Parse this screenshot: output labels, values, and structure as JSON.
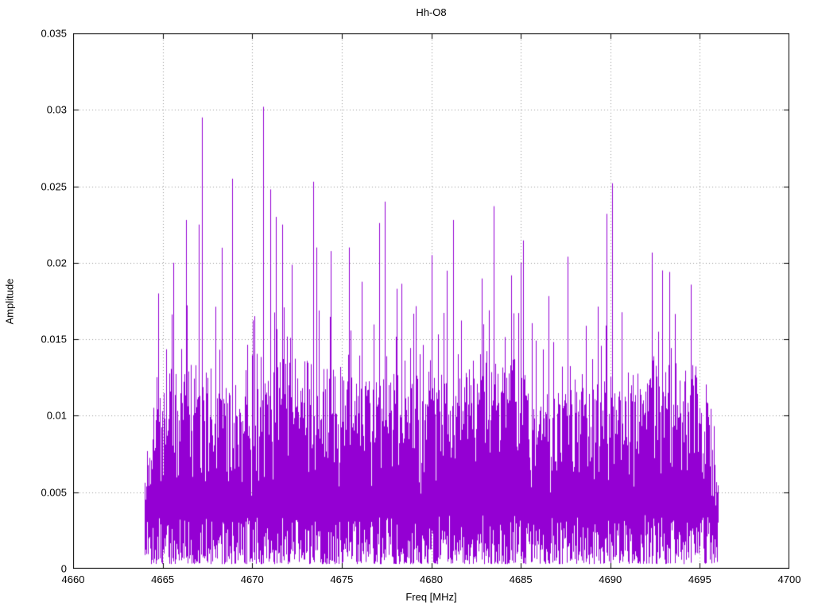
{
  "chart_data": {
    "type": "line",
    "title": "Hh-O8",
    "xlabel": "Freq [MHz]",
    "ylabel": "Amplitude",
    "xlim": [
      4660,
      4700
    ],
    "ylim": [
      0,
      0.035
    ],
    "x_tick_labels": [
      "4660",
      "4665",
      "4670",
      "4675",
      "4680",
      "4685",
      "4690",
      "4695",
      "4700"
    ],
    "x_tick_values": [
      4660,
      4665,
      4670,
      4675,
      4680,
      4685,
      4690,
      4695,
      4700
    ],
    "y_tick_labels": [
      "0",
      "0.005",
      "0.01",
      "0.015",
      "0.02",
      "0.025",
      "0.03",
      "0.035"
    ],
    "y_tick_values": [
      0,
      0.005,
      0.01,
      0.015,
      0.02,
      0.025,
      0.03,
      0.035
    ],
    "grid": true,
    "legend_position": "none",
    "series_color": "#9400d3",
    "grid_color": "#999999",
    "border_color": "#000000",
    "signal": {
      "description": "dense noise-like spectrum band",
      "freq_start": 4664.0,
      "freq_end": 4696.0,
      "noise_floor_min": 0.0003,
      "noise_band_typical_max": 0.013,
      "hair_max_typical": 0.02,
      "seed": 1337
    },
    "peaks": [
      {
        "freq": 4665.6,
        "amp": 0.02
      },
      {
        "freq": 4666.3,
        "amp": 0.0228
      },
      {
        "freq": 4667.2,
        "amp": 0.0295
      },
      {
        "freq": 4668.9,
        "amp": 0.0255
      },
      {
        "freq": 4670.6,
        "amp": 0.0302
      },
      {
        "freq": 4671.0,
        "amp": 0.0248
      },
      {
        "freq": 4671.3,
        "amp": 0.023
      },
      {
        "freq": 4673.4,
        "amp": 0.0253
      },
      {
        "freq": 4673.6,
        "amp": 0.021
      },
      {
        "freq": 4675.4,
        "amp": 0.021
      },
      {
        "freq": 4677.1,
        "amp": 0.0226
      },
      {
        "freq": 4677.4,
        "amp": 0.024
      },
      {
        "freq": 4680.0,
        "amp": 0.0205
      },
      {
        "freq": 4681.2,
        "amp": 0.0228
      },
      {
        "freq": 4683.5,
        "amp": 0.0237
      },
      {
        "freq": 4685.0,
        "amp": 0.02
      },
      {
        "freq": 4687.6,
        "amp": 0.0204
      },
      {
        "freq": 4689.8,
        "amp": 0.0232
      },
      {
        "freq": 4690.1,
        "amp": 0.0252
      },
      {
        "freq": 4692.9,
        "amp": 0.0195
      },
      {
        "freq": 4693.3,
        "amp": 0.0194
      }
    ]
  }
}
